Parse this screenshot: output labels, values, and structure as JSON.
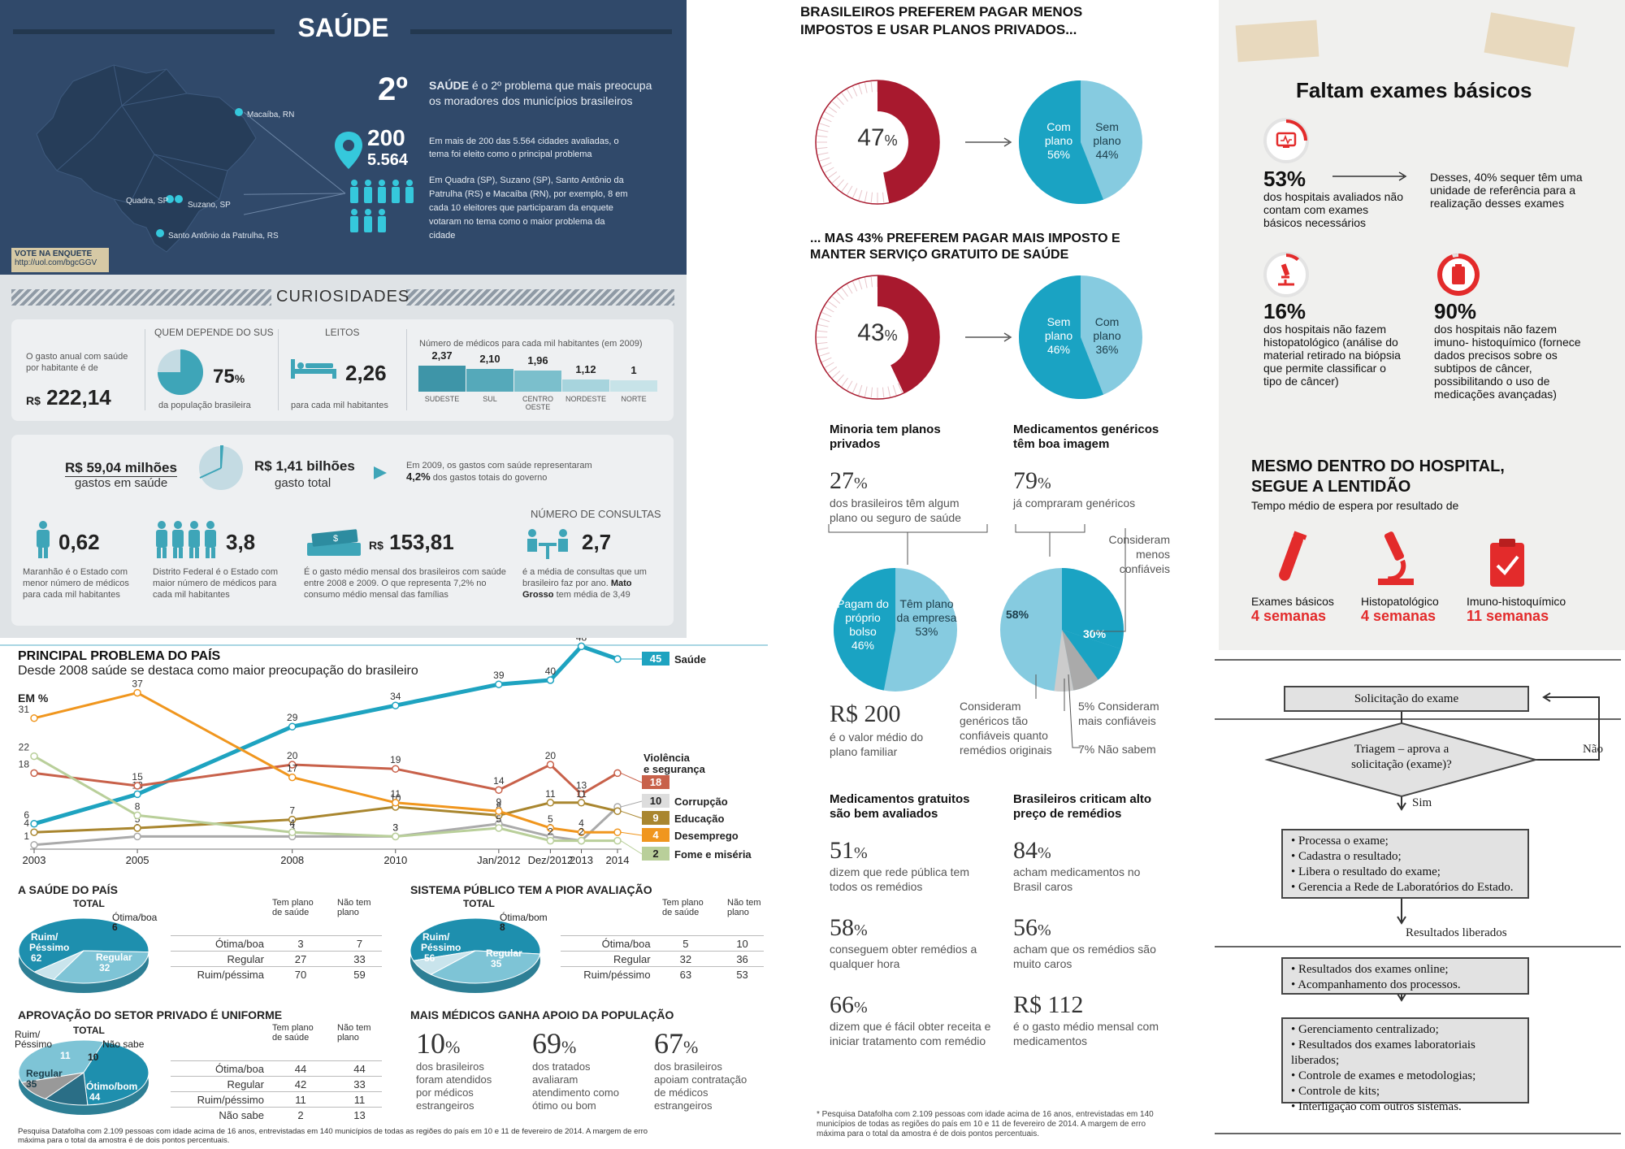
{
  "saude": {
    "title": "SAÚDE",
    "rank": "2º",
    "rank_lead": "SAÚDE",
    "rank_text": " é o 2º problema que mais preocupa os moradores dos municípios brasileiros",
    "n200": "200",
    "n5564": "5.564",
    "text200": "Em mais de 200 das 5.564 cidades avaliadas, o tema foi eleito como o principal problema",
    "text_example": "Em Quadra (SP), Suzano (SP), Santo Antônio da Patrulha (RS) e Macaíba (RN), por exemplo, 8 em cada 10 eleitores que participaram da enquete votaram no tema como o maior problema da cidade",
    "cities": [
      "Macaíba, RN",
      "Quadra, SP",
      "Suzano, SP",
      "Santo Antônio da Patrulha, RS"
    ],
    "vote_label": "VOTE NA ENQUETE",
    "vote_url": "http://uol.com/bgcGGV",
    "curiosidades": "CURIOSIDADES",
    "gasto_text": "O gasto anual com saúde por habitante é de",
    "gasto_value": "222,14",
    "currency": "R$",
    "sus_header": "QUEM DEPENDE DO SUS",
    "sus_pct": "75",
    "sus_pct_unit": "%",
    "sus_fraction": 0.75,
    "sus_caption": "da população brasileira",
    "leitos_header": "LEITOS",
    "leitos_value": "2,26",
    "leitos_caption": "para cada mil habitantes",
    "medicos_header": "Número de médicos para cada mil habitantes (em 2009)",
    "medicos": [
      {
        "region": "SUDESTE",
        "value": "2,37",
        "v": 2.37
      },
      {
        "region": "SUL",
        "value": "2,10",
        "v": 2.1
      },
      {
        "region": "CENTRO OESTE",
        "value": "1,96",
        "v": 1.96
      },
      {
        "region": "NORDESTE",
        "value": "1,12",
        "v": 1.12
      },
      {
        "region": "NORTE",
        "value": "1",
        "v": 1
      }
    ],
    "gastos_saude": "R$ 59,04 milhões",
    "gastos_saude_cap": "gastos em saúde",
    "gasto_total": "R$ 1,41 bilhões",
    "gasto_total_cap": "gasto total",
    "gastos_note": "Em 2009, os gastos com saúde representaram",
    "gastos_pct": "4,2%",
    "gastos_note2": " dos gastos totais do governo",
    "consultas_header": "NÚMERO DE CONSULTAS",
    "stats": [
      {
        "value": "0,62",
        "caption": "Maranhão é o Estado com menor número de médicos para cada mil habitantes"
      },
      {
        "value": "3,8",
        "caption": "Distrito Federal é o Estado com maior número de médicos para cada mil habitantes"
      },
      {
        "value": "153,81",
        "caption": "É o gasto médio mensal dos brasileiros com saúde entre 2008 e 2009. O que representa 7,2% no consumo médio mensal das famílias"
      },
      {
        "value": "2,7",
        "caption": "é a média de consultas que um brasileiro faz por ano.",
        "caption_bold": "Mato Grosso",
        "caption_tail": " tem média de 3,49"
      }
    ]
  },
  "prob": {
    "title": "PRINCIPAL PROBLEMA DO PAÍS",
    "subtitle": "Desde 2008 saúde se destaca como maior preocupação do brasileiro",
    "unit": "EM %",
    "footnote": "Pesquisa Datafolha com 2.109 pessoas com idade acima de 16 anos, entrevistadas em 140 municípios de todas as regiões do país em 10 e 11 de fevereiro de 2014. A margem de erro máxima para o total da amostra é de dois pontos percentuais.",
    "pies": [
      {
        "title": "A SAÚDE DO PAÍS",
        "total": "TOTAL",
        "slices": [
          {
            "label": "Ruim/ Péssimo",
            "value": "62"
          },
          {
            "label": "Regular",
            "value": "32"
          },
          {
            "label": "Ótima/boa",
            "value": "6"
          }
        ],
        "table_head": [
          "Tem plano de saúde",
          "Não tem plano"
        ],
        "rows": [
          [
            "Ótima/boa",
            "3",
            "7"
          ],
          [
            "Regular",
            "27",
            "33"
          ],
          [
            "Ruim/péssima",
            "70",
            "59"
          ]
        ]
      },
      {
        "title": "SISTEMA PÚBLICO TEM A PIOR AVALIAÇÃO",
        "total": "TOTAL",
        "slices": [
          {
            "label": "Ruim/ Péssimo",
            "value": "56"
          },
          {
            "label": "Regular",
            "value": "35"
          },
          {
            "label": "Ótima/bom",
            "value": "8"
          }
        ],
        "table_head": [
          "Tem plano de saúde",
          "Não tem plano"
        ],
        "rows": [
          [
            "Ótima/boa",
            "5",
            "10"
          ],
          [
            "Regular",
            "32",
            "36"
          ],
          [
            "Ruim/péssimo",
            "63",
            "53"
          ]
        ]
      },
      {
        "title": "APROVAÇÃO DO SETOR PRIVADO É UNIFORME",
        "total": "TOTAL",
        "slices": [
          {
            "label": "Regular",
            "value": "35"
          },
          {
            "label": "Ótimo/bom",
            "value": "44"
          },
          {
            "label": "Ruim/ Péssimo",
            "value": "11"
          },
          {
            "label": "Não sabe",
            "value": "10"
          }
        ],
        "table_head": [
          "Tem plano de saúde",
          "Não tem plano"
        ],
        "rows": [
          [
            "Ótima/boa",
            "44",
            "44"
          ],
          [
            "Regular",
            "42",
            "33"
          ],
          [
            "Ruim/péssimo",
            "11",
            "11"
          ],
          [
            "Não sabe",
            "2",
            "13"
          ]
        ]
      }
    ],
    "mais_title": "MAIS MÉDICOS GANHA APOIO DA POPULAÇÃO",
    "mais": [
      {
        "value": "10",
        "unit": "%",
        "text": "dos brasileiros foram atendidos por médicos estrangeiros"
      },
      {
        "value": "69",
        "unit": "%",
        "text": "dos tratados avaliaram atendimento como ótimo ou bom"
      },
      {
        "value": "67",
        "unit": "%",
        "text": "dos brasileiros apoiam contratação de médicos estrangeiros"
      }
    ]
  },
  "chart_data": {
    "type": "line",
    "title": "PRINCIPAL PROBLEMA DO PAÍS",
    "subtitle": "Desde 2008 saúde se destaca como maior preocupação do brasileiro",
    "ylabel": "EM %",
    "x": [
      "2003",
      "2005",
      "2008",
      "2010",
      "Jan/2012",
      "Dez/2012",
      "2013",
      "2014"
    ],
    "xpos": [
      2003,
      2005,
      2008,
      2010,
      2012.0,
      2013.0,
      2013.6,
      2014.3
    ],
    "series": [
      {
        "name": "Saúde",
        "color": "#1ea3c0",
        "values": [
          6,
          13,
          29,
          34,
          39,
          40,
          48,
          45
        ]
      },
      {
        "name": "Violência e segurança",
        "color": "#c8614a",
        "values": [
          18,
          15,
          20,
          19,
          14,
          20,
          13,
          18
        ]
      },
      {
        "name": "Corrupção",
        "color": "#aaaaaa",
        "values": [
          1,
          3,
          3,
          3,
          6,
          3,
          2,
          10
        ]
      },
      {
        "name": "Educação",
        "color": "#a9862f",
        "values": [
          4,
          5,
          7,
          10,
          8,
          11,
          11,
          9
        ]
      },
      {
        "name": "Desemprego",
        "color": "#f0961e",
        "values": [
          31,
          37,
          17,
          11,
          9,
          5,
          4,
          4
        ]
      },
      {
        "name": "Fome e miséria",
        "color": "#b9cf9a",
        "values": [
          22,
          8,
          4,
          3,
          5,
          2,
          2,
          2
        ]
      }
    ],
    "end_labels": [
      "45",
      "18",
      "10",
      "9",
      "4",
      "2"
    ]
  },
  "bras": {
    "title1": "BRASILEIROS PREFEREM PAGAR MENOS IMPOSTOS E USAR PLANOS PRIVADOS...",
    "pct1": "47",
    "pct1_frac": 0.47,
    "pie1": [
      {
        "label": "Com plano",
        "value": "56%"
      },
      {
        "label": "Sem plano",
        "value": "44%"
      }
    ],
    "title2": "... MAS 43% PREFEREM PAGAR MAIS IMPOSTO E MANTER SERVIÇO GRATUITO DE SAÚDE",
    "pct2": "43",
    "pct2_frac": 0.43,
    "pie2": [
      {
        "label": "Sem plano",
        "value": "46%"
      },
      {
        "label": "Com plano",
        "value": "36%"
      }
    ],
    "pct_unit": "%",
    "minoria_title": "Minoria tem planos privados",
    "minoria_pct": "27",
    "minoria_text": "dos brasileiros têm algum plano ou seguro de saúde",
    "genericos_title": "Medicamentos genéricos têm boa imagem",
    "genericos_pct": "79",
    "genericos_text": "já compraram genéricos",
    "pie3": [
      {
        "label": "Pagam do próprio bolso",
        "value": "46%"
      },
      {
        "label": "Têm plano da empresa",
        "value": "53%"
      }
    ],
    "pie4": [
      {
        "label": "58%",
        "value": "58%"
      },
      {
        "label": "30%",
        "value": "30%"
      }
    ],
    "pie4_notes": [
      "Consideram menos confiáveis",
      "Consideram genéricos tão confiáveis quanto remédios originais",
      "5% Consideram mais confiáveis",
      "7% Não sabem"
    ],
    "r200": "R$ 200",
    "r200_text": "é o valor médio do plano familiar",
    "gratuitos_title": "Medicamentos gratuitos são bem avaliados",
    "criticam_title": "Brasileiros criticam alto preço de remédios",
    "left_stats": [
      {
        "value": "51",
        "text": "dizem que rede pública tem todos os remédios"
      },
      {
        "value": "58",
        "text": "conseguem obter remédios a qualquer hora"
      },
      {
        "value": "66",
        "text": "dizem que é fácil obter receita e iniciar tratamento com remédio"
      }
    ],
    "right_stats": [
      {
        "value": "84",
        "text": "acham medicamentos no Brasil caros"
      },
      {
        "value": "56",
        "text": "acham que os remédios são muito caros"
      }
    ],
    "r112": "R$ 112",
    "r112_text": "é o gasto médio mensal com medicamentos",
    "footnote": "* Pesquisa Datafolha com 2.109 pessoas com idade acima de 16 anos, entrevistadas em 140 municípios de todas as regiões do país em 10 e 11 de fevereiro de 2014. A margem de erro máxima para o total da amostra é de dois pontos percentuais."
  },
  "exames": {
    "title": "Faltam exames básicos",
    "s1_pct": "53%",
    "s1_text": "dos hospitais avaliados não contam com exames básicos necessários",
    "s1_note": "Desses, 40% sequer têm uma unidade de referência para a realização desses exames",
    "s2_pct": "16%",
    "s2_text": "dos hospitais não fazem histopatológico (análise do material retirado na biópsia que permite classificar o tipo de câncer)",
    "s3_pct": "90%",
    "s3_text": "dos hospitais não fazem imuno- histoquímico (fornece dados precisos sobre os subtipos de câncer, possibilitando o uso de medicações avançadas)",
    "sub_title": "MESMO DENTRO DO HOSPITAL, SEGUE A LENTIDÃO",
    "sub_text": "Tempo médio de espera por resultado de",
    "waits": [
      {
        "label": "Exames básicos",
        "value": "4 semanas"
      },
      {
        "label": "Histopatológico",
        "value": "4 semanas"
      },
      {
        "label": "Imuno-histoquímico",
        "value": "11 semanas"
      }
    ]
  },
  "flow": {
    "start": "Solicitação do exame",
    "decision": "Triagem – aprova a solicitação (exame)?",
    "no": "Não",
    "yes": "Sim",
    "box1": [
      "Processa o exame;",
      "Cadastra o resultado;",
      "Libera o resultado do exame;",
      "Gerencia a Rede de Laboratórios do Estado."
    ],
    "released": "Resultados liberados",
    "box2": [
      "Resultados dos exames online;",
      "Acompanhamento dos processos."
    ],
    "box3": [
      "Gerenciamento centralizado;",
      "Resultados dos exames laboratoriais liberados;",
      "Controle de exames e metodologias;",
      "Controle de kits;",
      "Interligação com outros sistemas."
    ]
  }
}
